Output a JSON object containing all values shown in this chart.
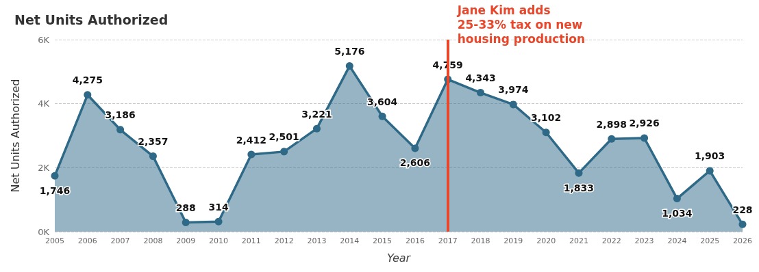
{
  "chart_data": {
    "type": "area",
    "title": "Net Units Authorized",
    "xlabel": "Year",
    "ylabel": "Net Units Authorized",
    "categories": [
      "2005",
      "2006",
      "2007",
      "2008",
      "2009",
      "2010",
      "2011",
      "2012",
      "2013",
      "2014",
      "2015",
      "2016",
      "2017",
      "2018",
      "2019",
      "2020",
      "2021",
      "2022",
      "2023",
      "2024",
      "2025",
      "2026"
    ],
    "series": [
      {
        "color": "#2e6a87",
        "values": [
          1746,
          4275,
          3186,
          2357,
          288,
          314,
          2412,
          2501,
          3221,
          5176,
          3604,
          2606,
          4759,
          4343,
          3974,
          3102,
          1833,
          2898,
          2926,
          1034,
          1903,
          228
        ],
        "value_labels": [
          "1,746",
          "4,275",
          "3,186",
          "2,357",
          "288",
          "314",
          "2,412",
          "2,501",
          "3,221",
          "5,176",
          "3,604",
          "2,606",
          "4,759",
          "4,343",
          "3,974",
          "3,102",
          "1,833",
          "2,898",
          "2,926",
          "1,034",
          "1,903",
          "228"
        ]
      }
    ],
    "ylim": [
      0,
      6000
    ],
    "yticks": [
      {
        "value": 0,
        "label": "0K"
      },
      {
        "value": 2000,
        "label": "2K"
      },
      {
        "value": 4000,
        "label": "4K"
      },
      {
        "value": 6000,
        "label": "6K"
      }
    ],
    "grid": "y",
    "marker": "circle",
    "ref_lines": [
      {
        "axis": "x",
        "value": "2017",
        "label": "Jane Kim adds 25-33% tax on new housing production",
        "color": "#e8472b"
      }
    ]
  }
}
